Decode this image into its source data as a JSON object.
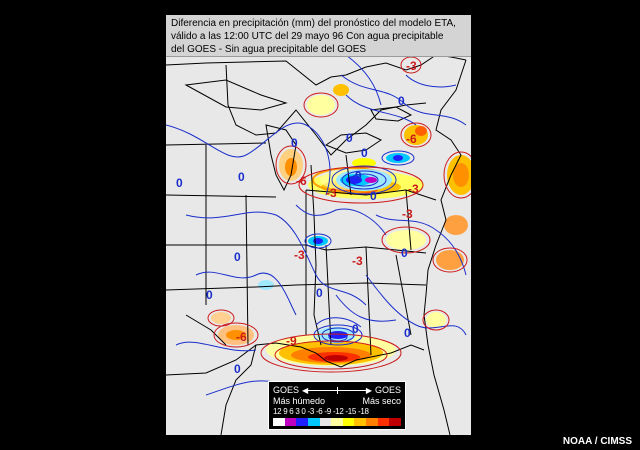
{
  "title_lines": [
    "Diferencia en precipitación (mm) del pronóstico del modelo ETA,",
    "válido a las 12:00 UTC del 29 mayo 96 Con agua precipitable",
    "del GOES - Sin agua precipitable del GOES"
  ],
  "legend": {
    "left_label": "GOES",
    "right_label": "GOES",
    "wetter_label": "Más húmedo",
    "drier_label": "Más seco",
    "scale_text": "12 9 6 3 0 -3 -6 -9 -12 -15 -18",
    "swatch_colors": [
      "#ffffff",
      "#c000c0",
      "#2020ff",
      "#00c8ff",
      "#e8e8e8",
      "#ffffa0",
      "#ffff00",
      "#ffc000",
      "#ff8000",
      "#ff3000",
      "#c00000"
    ]
  },
  "contour_labels": [
    {
      "text": "0",
      "color": "blue"
    },
    {
      "text": "0",
      "color": "blue"
    },
    {
      "text": "0",
      "color": "blue"
    },
    {
      "text": "0",
      "color": "blue"
    },
    {
      "text": "0",
      "color": "blue"
    },
    {
      "text": "0",
      "color": "blue"
    },
    {
      "text": "0",
      "color": "blue"
    },
    {
      "text": "0",
      "color": "blue"
    },
    {
      "text": "0",
      "color": "blue"
    },
    {
      "text": "0",
      "color": "blue"
    },
    {
      "text": "0",
      "color": "blue"
    },
    {
      "text": "0",
      "color": "blue"
    },
    {
      "text": "0",
      "color": "blue"
    },
    {
      "text": "0",
      "color": "blue"
    },
    {
      "text": "-3",
      "color": "red"
    },
    {
      "text": "-3",
      "color": "red"
    },
    {
      "text": "-3",
      "color": "red"
    },
    {
      "text": "-3",
      "color": "red"
    },
    {
      "text": "-3",
      "color": "red"
    },
    {
      "text": "-3",
      "color": "red"
    },
    {
      "text": "-6",
      "color": "red"
    },
    {
      "text": "-6",
      "color": "red"
    },
    {
      "text": "-6",
      "color": "red"
    },
    {
      "text": "-9",
      "color": "red"
    },
    {
      "text": "-9",
      "color": "red"
    }
  ],
  "credit": "NOAA / CIMSS",
  "colors": {
    "blue_contour": "#1a2ecc",
    "red_contour": "#cc1a1a",
    "land": "#e8e8e8",
    "border": "#000000"
  }
}
